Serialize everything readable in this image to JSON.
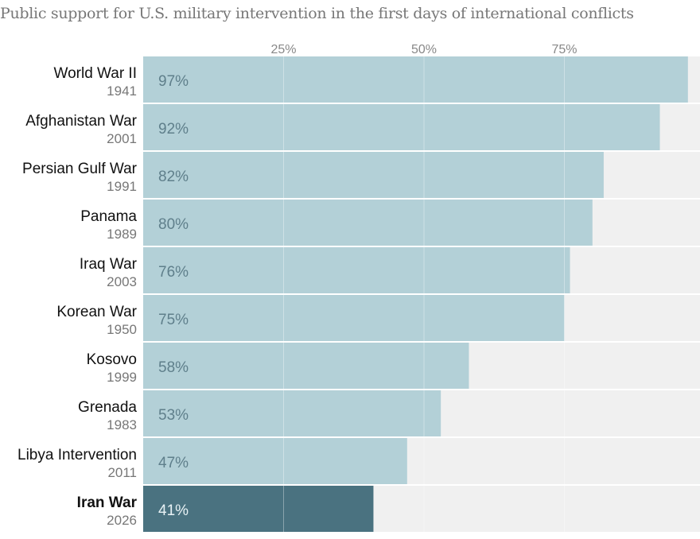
{
  "chart_data": {
    "type": "bar",
    "orientation": "horizontal",
    "title": "Public support for U.S. military intervention in the first days of international conflicts",
    "categories": [
      "World War II",
      "Afghanistan War",
      "Persian Gulf War",
      "Panama",
      "Iraq War",
      "Korean War",
      "Kosovo",
      "Grenada",
      "Libya Intervention",
      "Iran War"
    ],
    "years": [
      "1941",
      "2001",
      "1991",
      "1989",
      "2003",
      "1950",
      "1999",
      "1983",
      "2011",
      "2026"
    ],
    "values": [
      97,
      92,
      82,
      80,
      76,
      75,
      58,
      53,
      47,
      41
    ],
    "value_labels": [
      "97%",
      "92%",
      "82%",
      "80%",
      "76%",
      "75%",
      "58%",
      "53%",
      "47%",
      "41%"
    ],
    "highlight": "Iran War",
    "xlim": [
      0,
      100
    ],
    "xticks": [
      25,
      50,
      75
    ],
    "xtick_labels": [
      "25%",
      "50%",
      "75%"
    ],
    "grid": true,
    "colors": {
      "bar": "#b3d0d7",
      "highlight": "#4a7280",
      "track": "#f0f0f0"
    }
  }
}
